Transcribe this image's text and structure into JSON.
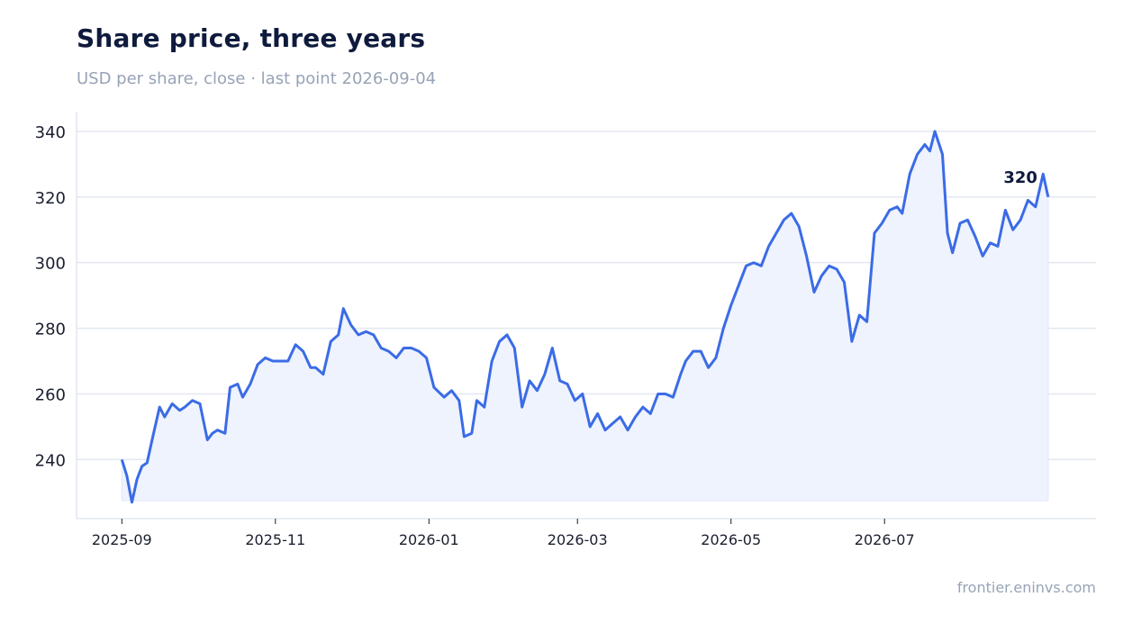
{
  "chart_data": {
    "type": "line",
    "title": "Share price, three years",
    "subtitle": "USD per share, close · last point 2026-09-04",
    "source": "frontier.eninvs.com",
    "y_ticks": [
      240,
      260,
      280,
      300,
      320,
      340
    ],
    "x_ticks": [
      "2025-09",
      "2025-11",
      "2026-01",
      "2026-03",
      "2026-05",
      "2026-07"
    ],
    "ylim": [
      222,
      346
    ],
    "xlim": [
      "2025-08-14",
      "2026-09-23"
    ],
    "grid": true,
    "line_color": "#3b6be6",
    "fill_color": "#eef3fd",
    "last_value_label": "320",
    "series": [
      {
        "x": [
          "2025-09-01",
          "2025-09-03",
          "2025-09-05",
          "2025-09-07",
          "2025-09-09",
          "2025-09-11",
          "2025-09-13",
          "2025-09-16",
          "2025-09-18",
          "2025-09-21",
          "2025-09-24",
          "2025-09-26",
          "2025-09-29",
          "2025-10-02",
          "2025-10-05",
          "2025-10-07",
          "2025-10-09",
          "2025-10-12",
          "2025-10-14",
          "2025-10-17",
          "2025-10-19",
          "2025-10-22",
          "2025-10-25",
          "2025-10-28",
          "2025-10-31",
          "2025-11-03",
          "2025-11-06",
          "2025-11-09",
          "2025-11-12",
          "2025-11-15",
          "2025-11-17",
          "2025-11-20",
          "2025-11-23",
          "2025-11-26",
          "2025-11-28",
          "2025-12-01",
          "2025-12-04",
          "2025-12-07",
          "2025-12-10",
          "2025-12-13",
          "2025-12-16",
          "2025-12-19",
          "2025-12-22",
          "2025-12-25",
          "2025-12-28",
          "2025-12-31",
          "2026-01-03",
          "2026-01-07",
          "2026-01-10",
          "2026-01-13",
          "2026-01-15",
          "2026-01-18",
          "2026-01-20",
          "2026-01-23",
          "2026-01-26",
          "2026-01-29",
          "2026-02-01",
          "2026-02-04",
          "2026-02-07",
          "2026-02-10",
          "2026-02-13",
          "2026-02-16",
          "2026-02-19",
          "2026-02-22",
          "2026-02-25",
          "2026-02-28",
          "2026-03-03",
          "2026-03-06",
          "2026-03-09",
          "2026-03-12",
          "2026-03-15",
          "2026-03-18",
          "2026-03-21",
          "2026-03-24",
          "2026-03-27",
          "2026-03-30",
          "2026-04-02",
          "2026-04-05",
          "2026-04-08",
          "2026-04-11",
          "2026-04-13",
          "2026-04-16",
          "2026-04-19",
          "2026-04-22",
          "2026-04-25",
          "2026-04-28",
          "2026-05-01",
          "2026-05-04",
          "2026-05-07",
          "2026-05-10",
          "2026-05-13",
          "2026-05-16",
          "2026-05-19",
          "2026-05-22",
          "2026-05-25",
          "2026-05-28",
          "2026-05-31",
          "2026-06-03",
          "2026-06-06",
          "2026-06-09",
          "2026-06-12",
          "2026-06-15",
          "2026-06-18",
          "2026-06-21",
          "2026-06-24",
          "2026-06-27",
          "2026-06-30",
          "2026-07-03",
          "2026-07-06",
          "2026-07-08",
          "2026-07-11",
          "2026-07-14",
          "2026-07-17",
          "2026-07-19",
          "2026-07-21",
          "2026-07-24",
          "2026-07-26",
          "2026-07-28",
          "2026-07-31",
          "2026-08-03",
          "2026-08-06",
          "2026-08-09",
          "2026-08-12",
          "2026-08-15",
          "2026-08-18",
          "2026-08-21",
          "2026-08-24",
          "2026-08-27",
          "2026-08-30",
          "2026-09-02",
          "2026-09-04"
        ],
        "values": [
          240,
          235,
          227,
          234,
          238,
          239,
          246,
          256,
          253,
          257,
          255,
          256,
          258,
          257,
          246,
          248,
          249,
          248,
          262,
          263,
          259,
          263,
          269,
          271,
          270,
          270,
          270,
          275,
          273,
          268,
          268,
          266,
          276,
          278,
          286,
          281,
          278,
          279,
          278,
          274,
          273,
          271,
          274,
          274,
          273,
          271,
          262,
          259,
          261,
          258,
          247,
          248,
          258,
          256,
          270,
          276,
          278,
          274,
          256,
          264,
          261,
          266,
          274,
          264,
          263,
          258,
          260,
          250,
          254,
          249,
          251,
          253,
          249,
          253,
          256,
          254,
          260,
          260,
          259,
          266,
          270,
          273,
          273,
          268,
          271,
          280,
          287,
          293,
          299,
          300,
          299,
          305,
          309,
          313,
          315,
          311,
          302,
          291,
          296,
          299,
          298,
          294,
          276,
          284,
          282,
          309,
          312,
          316,
          317,
          315,
          327,
          333,
          336,
          334,
          340,
          333,
          309,
          303,
          312,
          313,
          308,
          302,
          306,
          305,
          316,
          310,
          313,
          319,
          317,
          327,
          320
        ]
      }
    ]
  }
}
